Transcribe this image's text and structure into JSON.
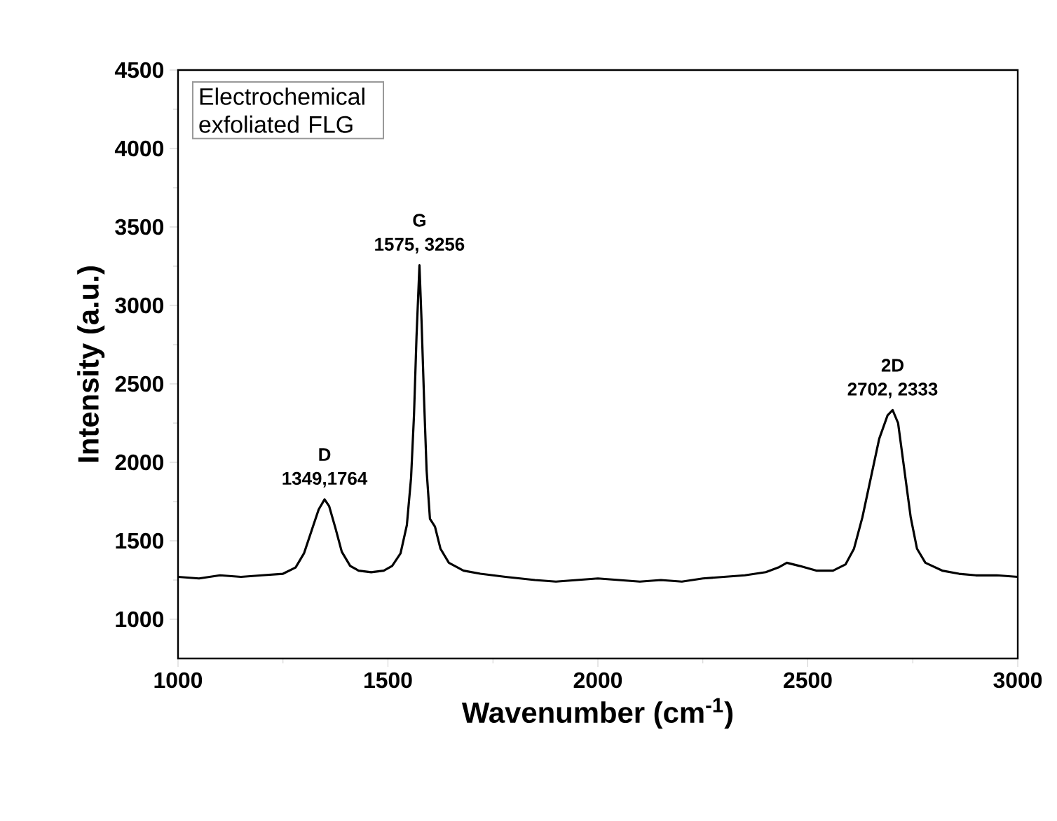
{
  "chart_data": {
    "type": "line",
    "xlabel": "Wavenumber (cm$^{-1}$)",
    "ylabel": "Intensity (a.u.)",
    "xlim": [
      1000,
      3000
    ],
    "xticks": [
      1000,
      1500,
      2000,
      2500,
      3000
    ],
    "ylim": [
      750,
      4500
    ],
    "yticks": [
      1000,
      1500,
      2000,
      2500,
      3000,
      3500,
      4000,
      4500
    ],
    "grid": false,
    "marker": "none",
    "line_style": "solid",
    "annotations": [
      "Electrochemical exfoliated FLG",
      {
        "text": "D",
        "x": 1349,
        "y": 1764
      },
      {
        "text": "1349,1764",
        "x": 1349,
        "y": 1764
      },
      {
        "text": "G",
        "x": 1575,
        "y": 3256
      },
      {
        "text": "1575, 3256",
        "x": 1575,
        "y": 3256
      },
      {
        "text": "2D",
        "x": 2702,
        "y": 2333
      },
      {
        "text": "2702, 2333",
        "x": 2702,
        "y": 2333
      }
    ],
    "series": [
      {
        "color": "#000000",
        "x": [
          1000,
          1050,
          1100,
          1150,
          1200,
          1250,
          1280,
          1300,
          1320,
          1335,
          1349,
          1360,
          1375,
          1390,
          1410,
          1430,
          1460,
          1490,
          1510,
          1530,
          1545,
          1555,
          1562,
          1568,
          1575,
          1580,
          1586,
          1592,
          1600,
          1612,
          1625,
          1645,
          1680,
          1720,
          1780,
          1850,
          1900,
          1950,
          2000,
          2050,
          2100,
          2150,
          2200,
          2250,
          2300,
          2350,
          2400,
          2430,
          2450,
          2480,
          2520,
          2560,
          2590,
          2610,
          2630,
          2650,
          2670,
          2690,
          2702,
          2715,
          2730,
          2745,
          2760,
          2780,
          2820,
          2860,
          2900,
          2950,
          3000
        ],
        "values": [
          1270,
          1260,
          1280,
          1270,
          1280,
          1290,
          1330,
          1420,
          1580,
          1700,
          1764,
          1720,
          1580,
          1430,
          1340,
          1310,
          1300,
          1310,
          1340,
          1420,
          1600,
          1900,
          2300,
          2800,
          3256,
          2900,
          2400,
          1950,
          1640,
          1590,
          1450,
          1360,
          1310,
          1290,
          1270,
          1250,
          1240,
          1250,
          1260,
          1250,
          1240,
          1250,
          1240,
          1260,
          1270,
          1280,
          1300,
          1330,
          1360,
          1340,
          1310,
          1310,
          1350,
          1450,
          1650,
          1900,
          2150,
          2300,
          2333,
          2250,
          1950,
          1650,
          1450,
          1360,
          1310,
          1290,
          1280,
          1280,
          1270
        ]
      }
    ]
  }
}
